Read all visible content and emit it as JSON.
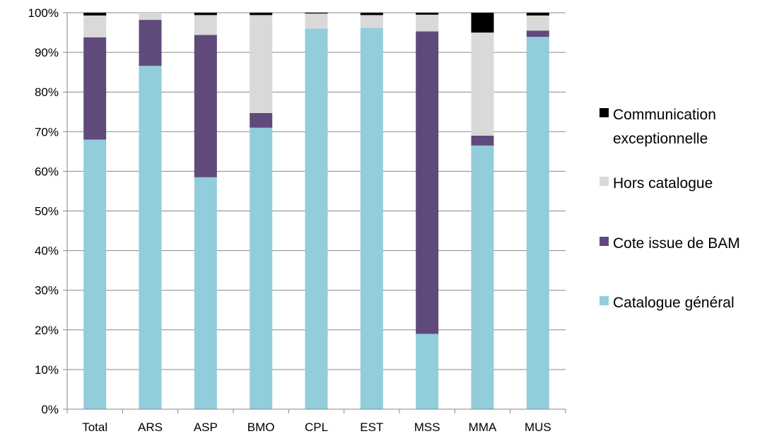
{
  "chart_data": {
    "type": "bar",
    "stacked": true,
    "percent": true,
    "categories": [
      "Total",
      "ARS",
      "ASP",
      "BMO",
      "CPL",
      "EST",
      "MSS",
      "MMA",
      "MUS"
    ],
    "ylim": [
      0,
      100
    ],
    "ytick_labels": [
      "0%",
      "10%",
      "20%",
      "30%",
      "40%",
      "50%",
      "60%",
      "70%",
      "80%",
      "90%",
      "100%"
    ],
    "grid": true,
    "legend_position": "right",
    "legend_lines": [
      [
        "Communication",
        "exceptionnelle"
      ],
      [
        "Hors catalogue"
      ],
      [
        "Cote issue de BAM"
      ],
      [
        "Catalogue général"
      ]
    ],
    "series": [
      {
        "name": "Catalogue général",
        "color": "#92CDDC",
        "values": [
          68,
          86.6,
          58.5,
          71,
          96,
          96.2,
          19,
          66.5,
          93.9
        ]
      },
      {
        "name": "Cote issue de BAM",
        "color": "#604A7B",
        "values": [
          25.8,
          11.6,
          35.9,
          3.7,
          0,
          0,
          76.3,
          2.5,
          1.6
        ]
      },
      {
        "name": "Hors catalogue",
        "color": "#D9D9D9",
        "values": [
          5.5,
          1.8,
          5.0,
          24.7,
          3.8,
          3.2,
          4.2,
          26,
          3.8
        ]
      },
      {
        "name": "Communication exceptionnelle",
        "color": "#000000",
        "values": [
          0.7,
          0,
          0.6,
          0.6,
          0.2,
          0.6,
          0.5,
          5.0,
          0.7
        ]
      }
    ]
  }
}
